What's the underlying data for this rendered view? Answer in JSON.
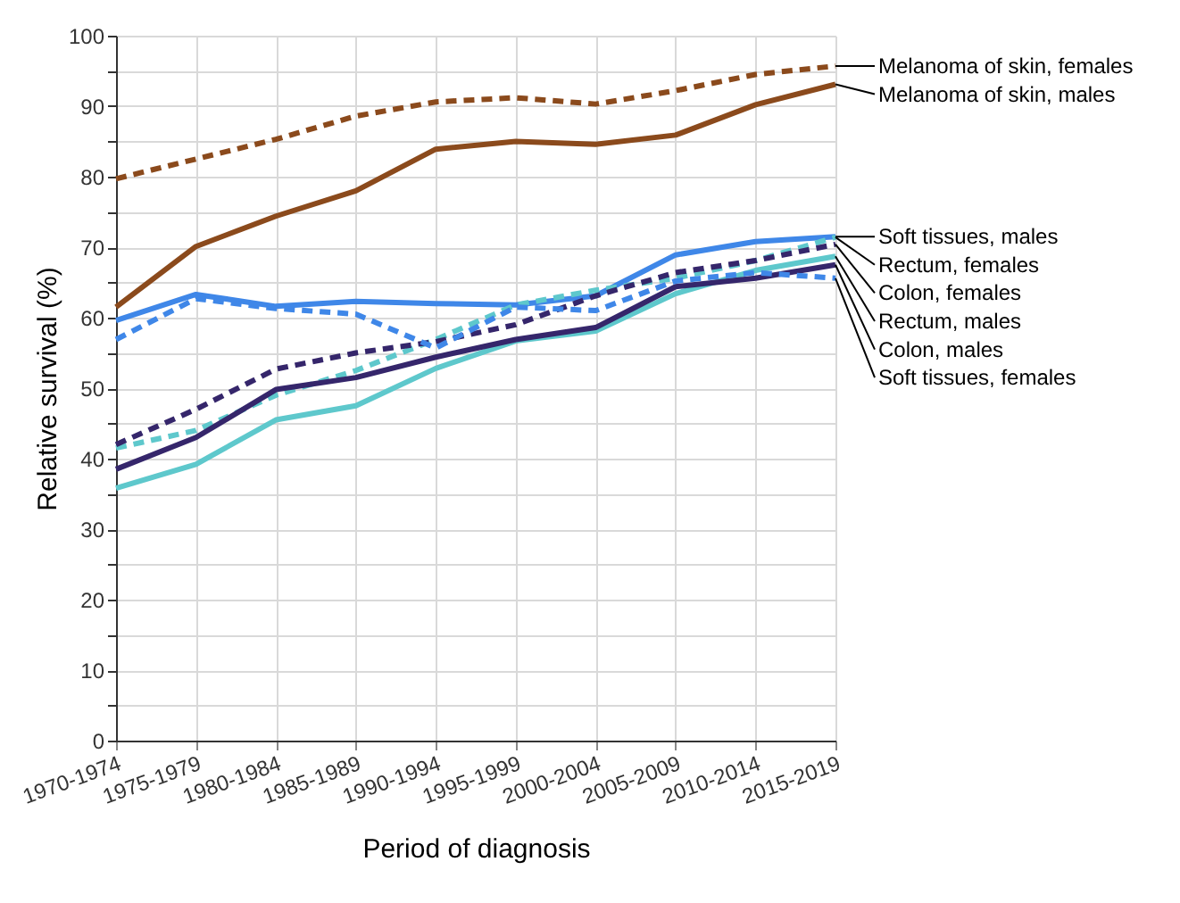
{
  "chart_data": {
    "type": "line",
    "xlabel": "Period of diagnosis",
    "ylabel": "Relative survival (%)",
    "categories": [
      "1970-1974",
      "1975-1979",
      "1980-1984",
      "1985-1989",
      "1990-1994",
      "1995-1999",
      "2000-2004",
      "2005-2009",
      "2010-2014",
      "2015-2019"
    ],
    "series": [
      {
        "name": "Melanoma of skin, females",
        "color": "#8b4a1c",
        "line_style": "dashed",
        "values": [
          79.7,
          82.5,
          85.3,
          88.6,
          90.6,
          91.2,
          90.3,
          92.2,
          94.5,
          95.7
        ]
      },
      {
        "name": "Melanoma of skin, males",
        "color": "#8b4a1c",
        "line_style": "solid",
        "values": [
          61.5,
          70.1,
          74.4,
          78.0,
          83.9,
          85.0,
          84.6,
          85.9,
          90.2,
          93.1
        ]
      },
      {
        "name": "Soft tissues, males",
        "color": "#3f87e8",
        "line_style": "solid",
        "values": [
          59.6,
          63.3,
          61.6,
          62.3,
          62.0,
          61.8,
          63.1,
          68.9,
          70.8,
          71.5
        ]
      },
      {
        "name": "Rectum, females",
        "color": "#5ec8cc",
        "line_style": "dashed",
        "values": [
          41.5,
          44.0,
          49.0,
          52.5,
          56.9,
          61.8,
          63.9,
          65.6,
          68.1,
          71.4
        ]
      },
      {
        "name": "Colon, females",
        "color": "#35266b",
        "line_style": "dashed",
        "values": [
          42.0,
          47.0,
          52.7,
          55.0,
          56.6,
          59.0,
          63.1,
          66.4,
          68.1,
          70.4
        ]
      },
      {
        "name": "Rectum, males",
        "color": "#5ec8cc",
        "line_style": "solid",
        "values": [
          35.8,
          39.2,
          45.5,
          47.5,
          52.8,
          56.7,
          58.1,
          63.4,
          66.7,
          68.7
        ]
      },
      {
        "name": "Colon, males",
        "color": "#35266b",
        "line_style": "solid",
        "values": [
          38.5,
          43.0,
          49.8,
          51.5,
          54.4,
          56.9,
          58.6,
          64.4,
          65.6,
          67.5
        ]
      },
      {
        "name": "Soft tissues, females",
        "color": "#3f87e8",
        "line_style": "dashed",
        "values": [
          56.9,
          62.7,
          61.3,
          60.5,
          55.7,
          61.5,
          61.0,
          65.2,
          66.4,
          65.6
        ]
      }
    ],
    "ylim": [
      0,
      100
    ],
    "yticks": [
      0,
      {
        "value": 5,
        "label": null
      },
      10,
      {
        "value": 15,
        "label": null
      },
      20,
      {
        "value": 25,
        "label": null
      },
      30,
      {
        "value": 35,
        "label": null
      },
      40,
      {
        "value": 45,
        "label": null
      },
      50,
      {
        "value": 55,
        "label": null
      },
      60,
      {
        "value": 65,
        "label": null
      },
      70,
      {
        "value": 75,
        "label": null
      },
      80,
      {
        "value": 85,
        "label": null
      },
      90,
      {
        "value": 95,
        "label": null
      },
      100
    ],
    "grid": true,
    "legend": false
  }
}
